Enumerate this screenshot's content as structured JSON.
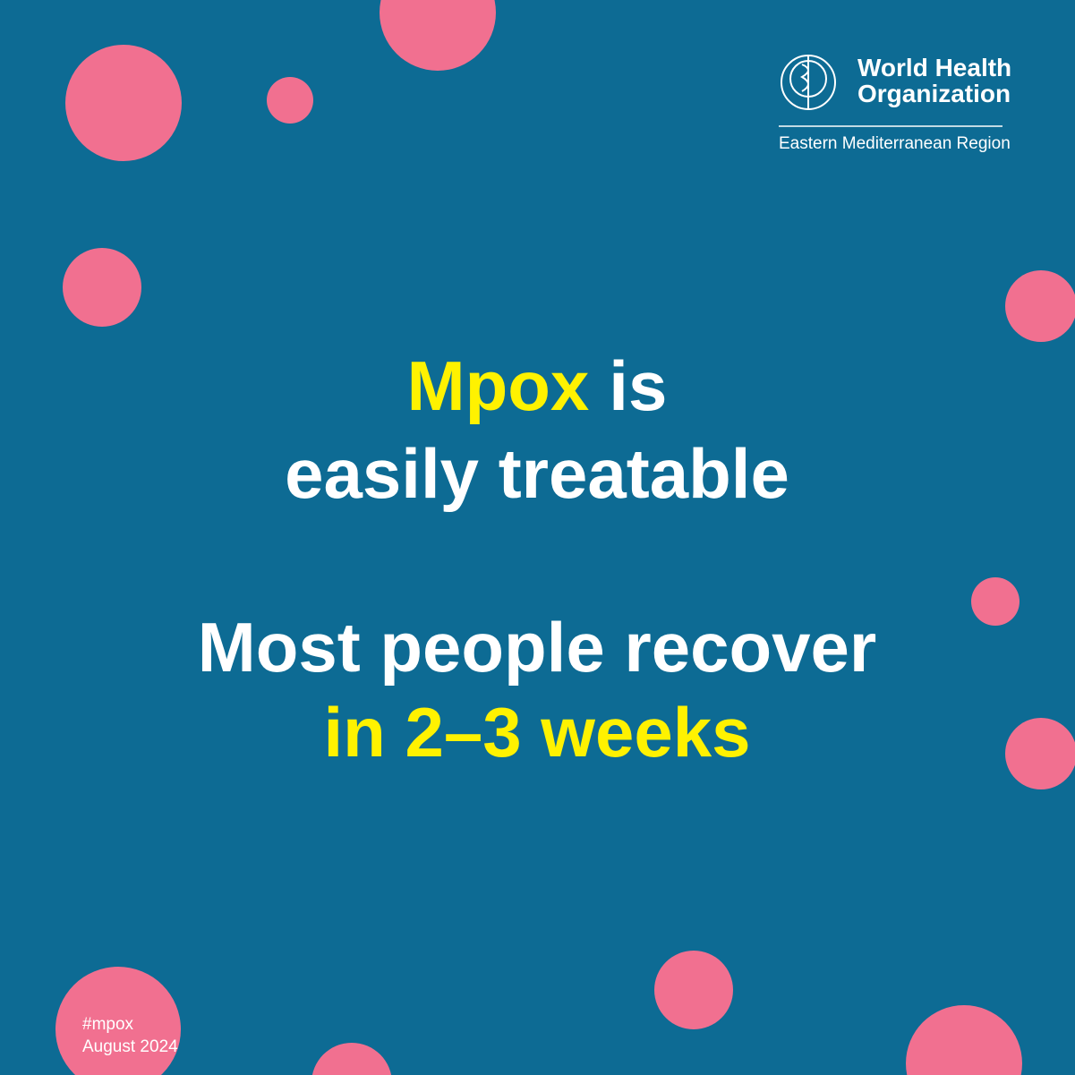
{
  "logo": {
    "line1": "World Health",
    "line2": "Organization",
    "region": "Eastern Mediterranean Region"
  },
  "headline": {
    "highlight": "Mpox",
    "rest": "is",
    "line2": "easily treatable",
    "line3": "Most people recover",
    "line4": "in 2–3 weeks"
  },
  "footer": {
    "hashtag": "#mpox",
    "date": "August 2024"
  }
}
